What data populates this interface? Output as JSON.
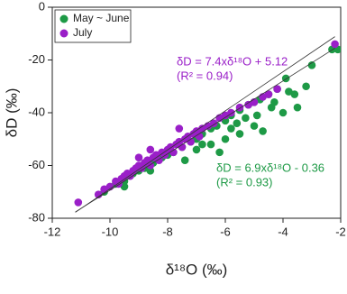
{
  "chart_data": {
    "type": "scatter",
    "x_label": "δ¹⁸O (‰)",
    "y_label": "δD (‰)",
    "xlim": [
      -12,
      -2
    ],
    "xticks": [
      -12,
      -10,
      -8,
      -6,
      -4,
      -2
    ],
    "ylim": [
      -80,
      0
    ],
    "yticks": [
      -80,
      -60,
      -40,
      -20,
      0
    ],
    "legend": "upper left",
    "series": [
      {
        "name": "May ~ June",
        "color": "#1e9a46",
        "equation": "δD = 6.9xδ¹⁸O - 0.36",
        "r2": "(R² = 0.93)",
        "fit": {
          "slope": 6.9,
          "intercept": -0.36
        },
        "x": [
          -10.2,
          -9.8,
          -9.5,
          -9.2,
          -9,
          -8.8,
          -8.5,
          -8.2,
          -8,
          -7.8,
          -7.5,
          -7.2,
          -7,
          -6.8,
          -6.5,
          -6.3,
          -6,
          -5.8,
          -5.5,
          -5.2,
          -5,
          -4.8,
          -4.5,
          -4.2,
          -3.9,
          -3,
          -2.3,
          -2.1,
          -6,
          -5.5,
          -5.8,
          -5,
          -4.7,
          -4,
          -3.5,
          -3.6,
          -6.5,
          -7,
          -6.8,
          -5.3,
          -4.4,
          -4.9,
          -8.6,
          -9.5,
          -7.4,
          -6.2,
          -5.6,
          -4.3,
          -3.8,
          -3.2
        ],
        "values": [
          -70,
          -67,
          -66,
          -63,
          -62,
          -61,
          -59,
          -57,
          -56,
          -55,
          -53,
          -51,
          -50,
          -48,
          -46,
          -45,
          -43,
          -41,
          -39,
          -37,
          -36,
          -35,
          -33,
          -31,
          -27,
          -22,
          -16,
          -16,
          -50,
          -48,
          -46,
          -45,
          -47,
          -40,
          -38,
          -33,
          -52,
          -54,
          -52,
          -42,
          -38,
          -41,
          -62,
          -68,
          -58,
          -55,
          -44,
          -36,
          -32,
          -30
        ]
      },
      {
        "name": "July",
        "color": "#9a1fc8",
        "equation": "δD = 7.4xδ¹⁸O + 5.12",
        "r2": "(R² = 0.94)",
        "fit": {
          "slope": 7.4,
          "intercept": 5.12
        },
        "x": [
          -11.1,
          -10.4,
          -10.2,
          -10,
          -9.8,
          -9.7,
          -9.6,
          -9.5,
          -9.4,
          -9.3,
          -9.2,
          -9.1,
          -9,
          -8.9,
          -8.8,
          -8.7,
          -8.6,
          -8.5,
          -8.4,
          -8.3,
          -8.2,
          -8.1,
          -8,
          -7.9,
          -7.8,
          -7.7,
          -7.6,
          -7.5,
          -7.4,
          -7.3,
          -7.2,
          -7.1,
          -7,
          -6.9,
          -6.8,
          -6.6,
          -6.4,
          -6.2,
          -6,
          -5.8,
          -5.5,
          -5.2,
          -5,
          -4.7,
          -4.5,
          -4.2,
          -2.2,
          -8.6,
          -9,
          -7.6
        ],
        "values": [
          -74,
          -71,
          -69,
          -68,
          -66,
          -67,
          -65,
          -64,
          -63,
          -64,
          -62,
          -61,
          -60,
          -61,
          -59,
          -58,
          -60,
          -57,
          -56,
          -58,
          -55,
          -56,
          -54,
          -53,
          -55,
          -52,
          -51,
          -53,
          -50,
          -49,
          -51,
          -48,
          -47,
          -49,
          -46,
          -45,
          -44,
          -42,
          -41,
          -40,
          -38,
          -37,
          -36,
          -34,
          -33,
          -31,
          -14,
          -54,
          -57,
          -46
        ]
      }
    ]
  }
}
